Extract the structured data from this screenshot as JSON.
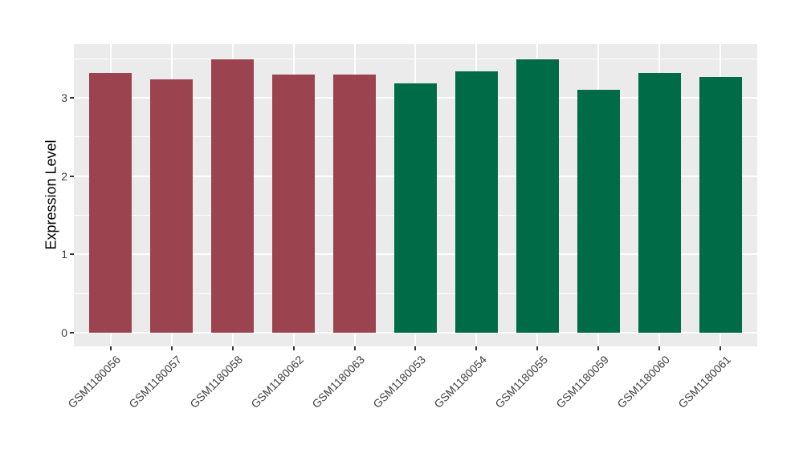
{
  "chart_data": {
    "type": "bar",
    "title": "",
    "xlabel": "",
    "ylabel": "Expression Level",
    "categories": [
      "GSM1180056",
      "GSM1180057",
      "GSM1180058",
      "GSM1180062",
      "GSM1180063",
      "GSM1180053",
      "GSM1180054",
      "GSM1180055",
      "GSM1180059",
      "GSM1180060",
      "GSM1180061"
    ],
    "values": [
      3.32,
      3.23,
      3.49,
      3.3,
      3.3,
      3.18,
      3.34,
      3.49,
      3.1,
      3.32,
      3.27
    ],
    "bar_colors": [
      "#9B4450",
      "#9B4450",
      "#9B4450",
      "#9B4450",
      "#9B4450",
      "#006B47",
      "#006B47",
      "#006B47",
      "#006B47",
      "#006B47",
      "#006B47"
    ],
    "palette": {
      "left_group": "#9B4450",
      "right_group": "#006B47"
    },
    "ylim": [
      0,
      3.69
    ],
    "yticks": [
      "0",
      "1",
      "2",
      "3"
    ],
    "ytick_values": [
      0,
      1,
      2,
      3
    ],
    "minor_gridlines": [
      0.5,
      1.5,
      2.5,
      3.5
    ],
    "x_label_rotation_deg": -45,
    "grid": "on",
    "legend": "none",
    "panel_background": "#EBEBEB",
    "grid_color": "#FFFFFF"
  }
}
